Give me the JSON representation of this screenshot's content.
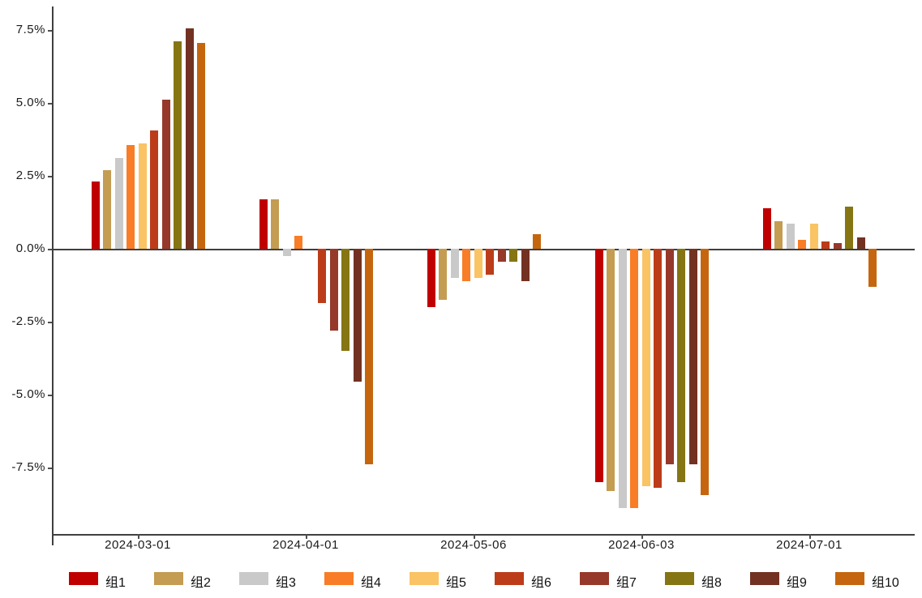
{
  "chart_data": {
    "type": "bar",
    "title": "",
    "xlabel": "",
    "ylabel": "",
    "categories": [
      "2024-03-01",
      "2024-04-01",
      "2024-05-06",
      "2024-06-03",
      "2024-07-01"
    ],
    "series": [
      {
        "name": "组1",
        "color": "#C00000",
        "values": [
          2.3,
          1.7,
          -2.0,
          -8.0,
          1.4
        ]
      },
      {
        "name": "组2",
        "color": "#C49C52",
        "values": [
          2.7,
          1.7,
          -1.75,
          -8.3,
          0.95
        ]
      },
      {
        "name": "组3",
        "color": "#C9C9C9",
        "values": [
          3.1,
          -0.25,
          -1.0,
          -8.9,
          0.85
        ]
      },
      {
        "name": "组4",
        "color": "#F87D26",
        "values": [
          3.55,
          0.45,
          -1.1,
          -8.9,
          0.3
        ]
      },
      {
        "name": "组5",
        "color": "#FAC364",
        "values": [
          3.6,
          0,
          -1.0,
          -8.15,
          0.85
        ]
      },
      {
        "name": "组6",
        "color": "#BC3C19",
        "values": [
          4.05,
          -1.85,
          -0.9,
          -8.2,
          0.25
        ]
      },
      {
        "name": "组7",
        "color": "#96392A",
        "values": [
          5.1,
          -2.8,
          -0.45,
          -7.4,
          0.2
        ]
      },
      {
        "name": "组8",
        "color": "#857513",
        "values": [
          7.1,
          -3.5,
          -0.45,
          -8.0,
          1.45
        ]
      },
      {
        "name": "组9",
        "color": "#733122",
        "values": [
          7.55,
          -4.55,
          -1.1,
          -7.4,
          0.4
        ]
      },
      {
        "name": "组10",
        "color": "#C5660F",
        "values": [
          7.05,
          -7.4,
          0.5,
          -8.45,
          -1.3
        ]
      }
    ],
    "y_ticks": [
      "7.5%",
      "5.0%",
      "2.5%",
      "0.0%",
      "-2.5%",
      "-5.0%",
      "-7.5%"
    ],
    "y_tick_values": [
      7.5,
      5.0,
      2.5,
      0.0,
      -2.5,
      -5.0,
      -7.5
    ],
    "ylim": [
      -9.9,
      8.3
    ],
    "grid": false,
    "zero_line": true,
    "legend_position": "bottom",
    "axis_color": "#3f3f3f",
    "text_color": "#1a1a1a"
  }
}
